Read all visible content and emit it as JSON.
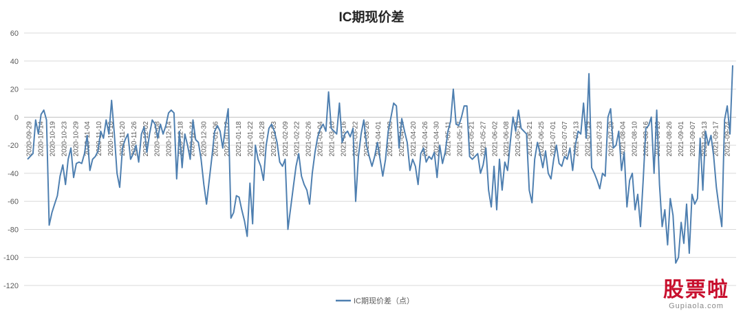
{
  "chart_data": {
    "type": "line",
    "title": "IC期现价差",
    "xlabel": "",
    "ylabel": "",
    "ylim": [
      -120,
      60
    ],
    "yticks": [
      60,
      40,
      20,
      0,
      -20,
      -40,
      -60,
      -80,
      -100,
      -120
    ],
    "grid": true,
    "legend_position": "bottom-center",
    "colors": {
      "line": "#4e7fb0",
      "grid": "#d9d9d9",
      "axis": "#bfbfbf"
    },
    "x_tick_labels": [
      "2020-09-29",
      "2020-10-14",
      "2020-10-19",
      "2020-10-23",
      "2020-10-29",
      "2020-11-04",
      "2020-11-10",
      "2020-11-16",
      "2020-11-20",
      "2020-11-26",
      "2020-12-02",
      "2020-12-08",
      "2020-12-14",
      "2020-12-18",
      "2020-12-24",
      "2020-12-30",
      "2021-01-06",
      "2021-01-12",
      "2021-01-18",
      "2021-01-22",
      "2021-01-28",
      "2021-02-03",
      "2021-02-09",
      "2021-02-22",
      "2021-02-26",
      "2021-03-04",
      "2021-03-10",
      "2021-03-16",
      "2021-03-22",
      "2021-03-26",
      "2021-04-01",
      "2021-04-08",
      "2021-04-14",
      "2021-04-20",
      "2021-04-26",
      "2021-04-30",
      "2021-05-11",
      "2021-05-17",
      "2021-05-21",
      "2021-05-27",
      "2021-06-02",
      "2021-06-08",
      "2021-06-15",
      "2021-06-21",
      "2021-06-25",
      "2021-07-01",
      "2021-07-07",
      "2021-07-13",
      "2021-07-19",
      "2021-07-23",
      "2021-07-29",
      "2021-08-04",
      "2021-08-10",
      "2021-08-16",
      "2021-08-20",
      "2021-08-26",
      "2021-09-01",
      "2021-09-07",
      "2021-09-13",
      "2021-09-17",
      "2021-09-24"
    ],
    "series": [
      {
        "name": "IC期现价差（点）",
        "values": [
          -30,
          -28,
          -26,
          -2,
          -12,
          2,
          5,
          -2,
          -77,
          -68,
          -62,
          -56,
          -42,
          -34,
          -48,
          -30,
          -22,
          -43,
          -33,
          -32,
          -33,
          -26,
          -13,
          -38,
          -30,
          -28,
          -24,
          -10,
          -15,
          -2,
          -12,
          12,
          -12,
          -40,
          -50,
          -22,
          -16,
          -12,
          -30,
          -26,
          -20,
          -32,
          -12,
          -7,
          -25,
          -12,
          -2,
          -5,
          -15,
          -5,
          -12,
          -6,
          3,
          5,
          3,
          -44,
          -10,
          -36,
          -12,
          -20,
          -30,
          -2,
          -16,
          -18,
          -30,
          -48,
          -62,
          -45,
          -28,
          -10,
          -6,
          -10,
          -22,
          -6,
          6,
          -72,
          -68,
          -56,
          -57,
          -66,
          -74,
          -85,
          -47,
          -76,
          -20,
          -30,
          -35,
          -45,
          -20,
          -8,
          -5,
          -10,
          -18,
          -32,
          -35,
          -30,
          -80,
          -65,
          -50,
          -35,
          -26,
          -42,
          -48,
          -52,
          -62,
          -40,
          -25,
          -14,
          -8,
          -5,
          -10,
          18,
          -8,
          -10,
          -12,
          10,
          -18,
          -12,
          -10,
          -14,
          -8,
          -60,
          -28,
          -12,
          -2,
          -20,
          -28,
          -35,
          -28,
          -18,
          -30,
          -42,
          -30,
          -10,
          0,
          10,
          8,
          -22,
          -1,
          -10,
          -18,
          -38,
          -30,
          -35,
          -48,
          -26,
          -22,
          -32,
          -28,
          -30,
          -25,
          -43,
          -20,
          -33,
          -25,
          -10,
          -3,
          20,
          -5,
          -6,
          0,
          8,
          8,
          -28,
          -30,
          -28,
          -26,
          -40,
          -34,
          -22,
          -52,
          -64,
          -35,
          -66,
          -30,
          -52,
          -32,
          -38,
          -18,
          0,
          -10,
          5,
          -8,
          -10,
          -12,
          -52,
          -61,
          -30,
          -18,
          -26,
          -36,
          -24,
          -40,
          -44,
          -30,
          -20,
          -33,
          -35,
          -28,
          -30,
          -22,
          -38,
          -20,
          -10,
          -12,
          10,
          -15,
          31,
          -36,
          -40,
          -45,
          -51,
          -40,
          -42,
          0,
          6,
          -22,
          -20,
          -10,
          -38,
          -25,
          -64,
          -45,
          -40,
          -66,
          -55,
          -78,
          -45,
          -8,
          -6,
          0,
          -40,
          5,
          -48,
          -78,
          -66,
          -91,
          -58,
          -70,
          -104,
          -100,
          -75,
          -90,
          -62,
          -97,
          -55,
          -62,
          -58,
          -15,
          -52,
          -10,
          -20,
          -13,
          -28,
          -50,
          -65,
          -78,
          -2,
          8,
          -12,
          37
        ]
      }
    ]
  },
  "watermark": {
    "main": "股票啦",
    "sub": "Gupiaola.com"
  }
}
